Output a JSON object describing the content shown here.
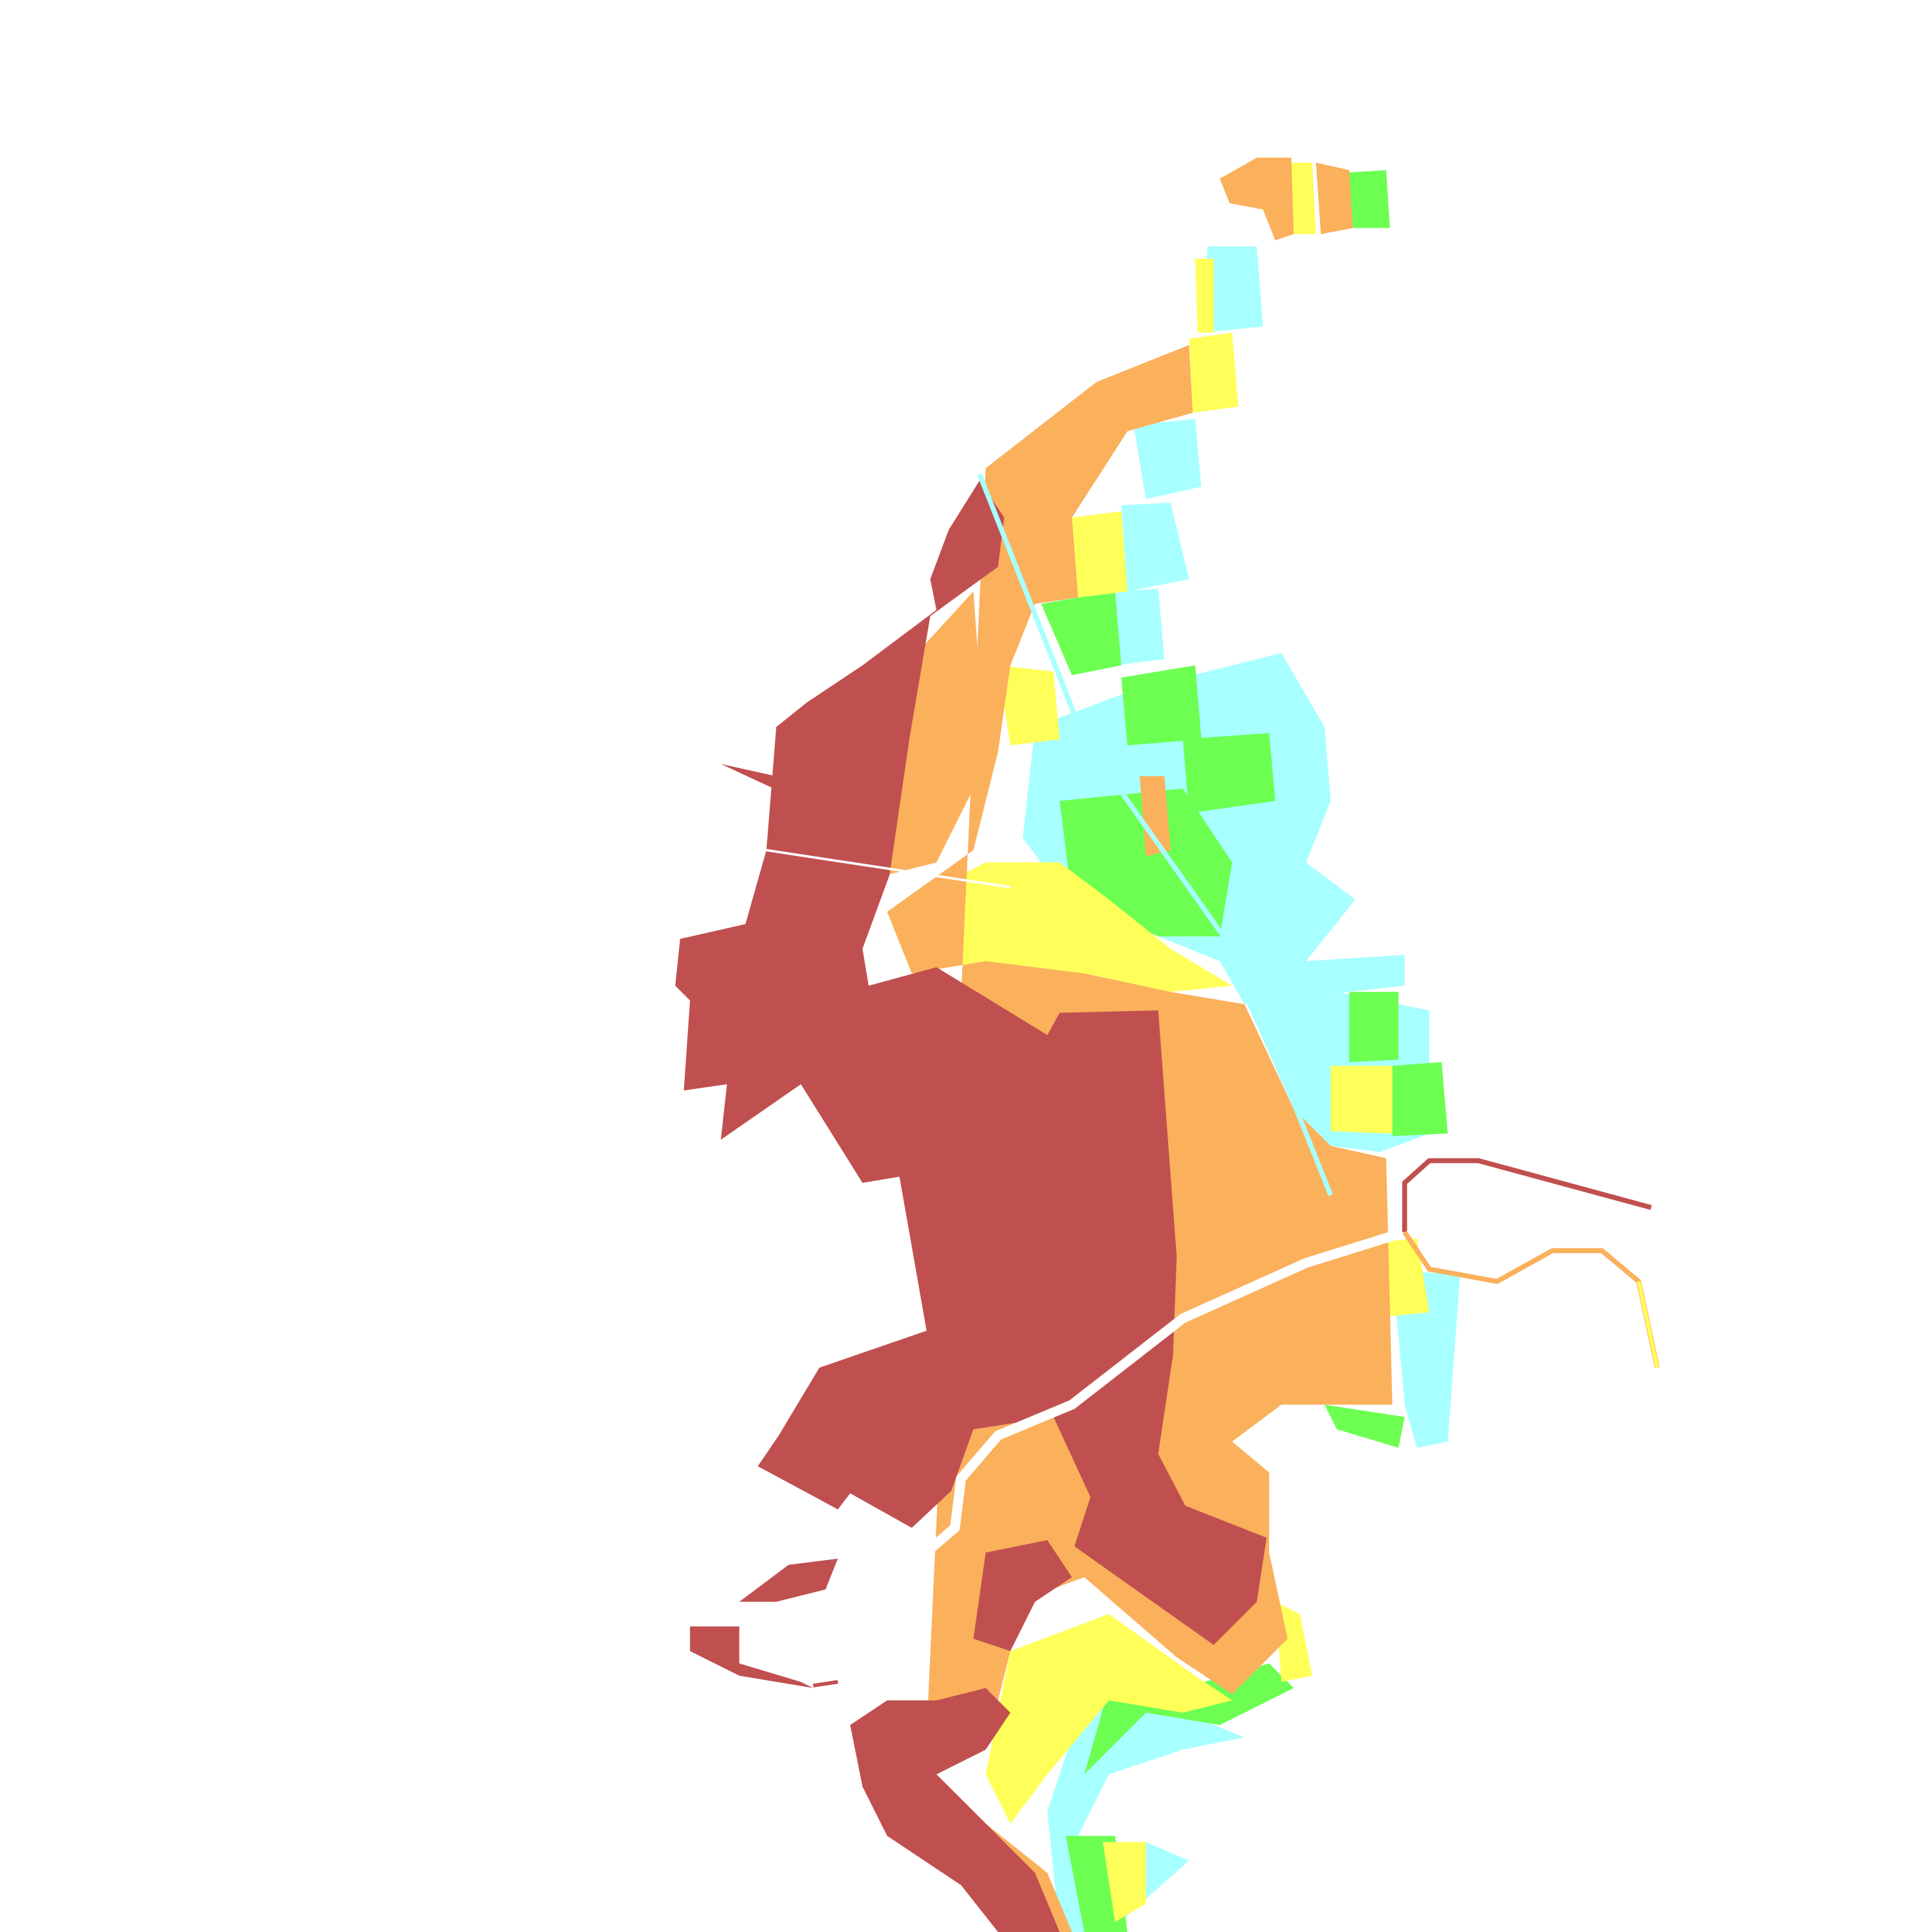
{
  "map": {
    "palette": {
      "class_1": "#c0504f",
      "class_2": "#fbb05c",
      "class_3": "#ffff5a",
      "class_4": "#6cff52",
      "class_5": "#a8ffff",
      "background": "#ffffff"
    }
  }
}
